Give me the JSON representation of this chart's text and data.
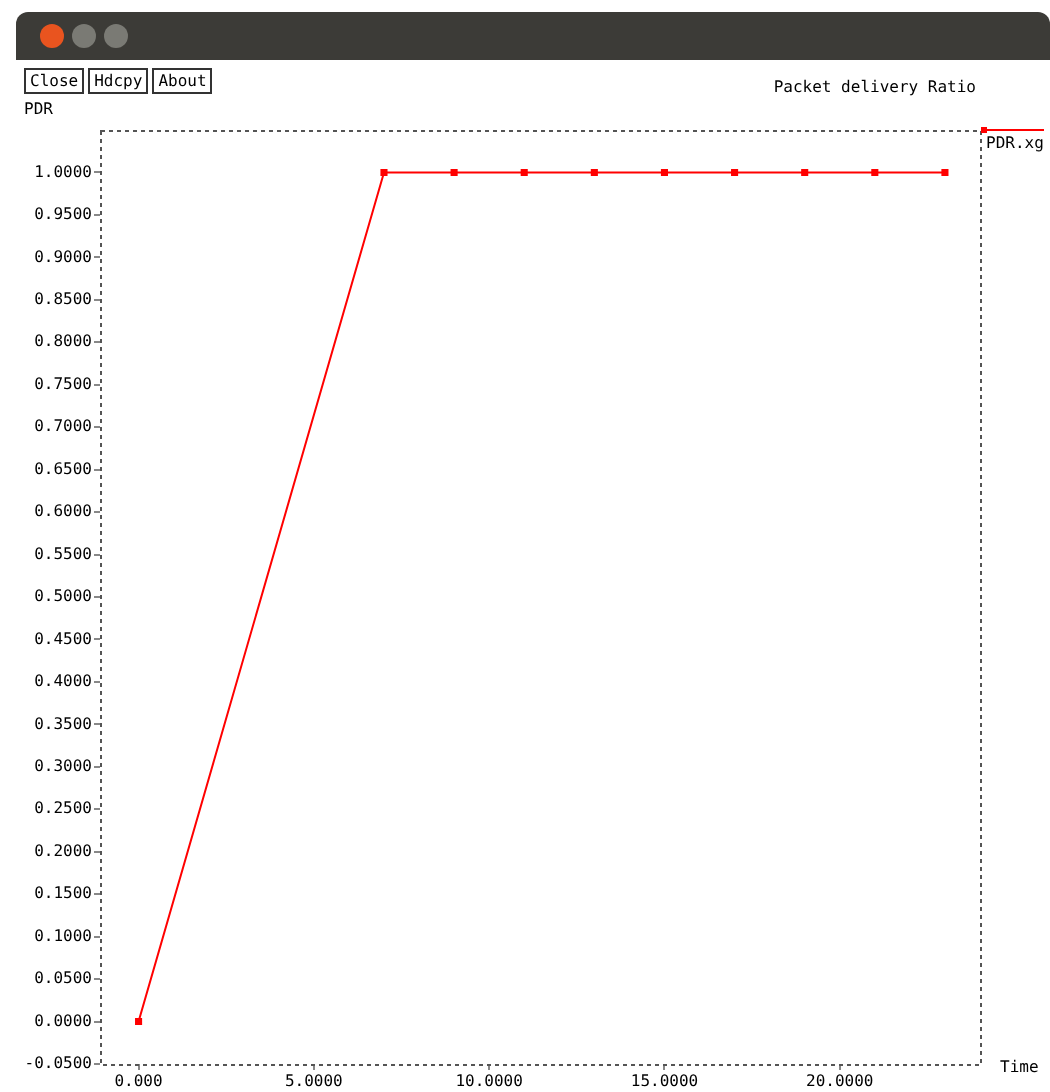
{
  "chart_data": {
    "type": "line",
    "title": "Packet delivery Ratio",
    "xlabel": "Time",
    "ylabel": "PDR",
    "annotations": [
      "Close",
      "Hdcpy",
      "About"
    ],
    "x": [
      0,
      7,
      9,
      11,
      13,
      15,
      17,
      19,
      21,
      23
    ],
    "series": [
      {
        "name": "PDR.xg",
        "color": "#ff0000",
        "values": [
          0,
          1,
          1,
          1,
          1,
          1,
          1,
          1,
          1,
          1
        ]
      }
    ],
    "xlim": [
      -1.1,
      24
    ],
    "xticks": [
      {
        "value": 0,
        "label": "0.000"
      },
      {
        "value": 5,
        "label": "5.0000"
      },
      {
        "value": 10,
        "label": "10.0000"
      },
      {
        "value": 15,
        "label": "15.0000"
      },
      {
        "value": 20,
        "label": "20.0000"
      }
    ],
    "ylim": [
      -0.05,
      1.05
    ],
    "yticks": [
      {
        "value": -0.05,
        "label": "-0.0500"
      },
      {
        "value": 0,
        "label": "0.0000"
      },
      {
        "value": 0.05,
        "label": "0.0500"
      },
      {
        "value": 0.1,
        "label": "0.1000"
      },
      {
        "value": 0.15,
        "label": "0.1500"
      },
      {
        "value": 0.2,
        "label": "0.2000"
      },
      {
        "value": 0.25,
        "label": "0.2500"
      },
      {
        "value": 0.3,
        "label": "0.3000"
      },
      {
        "value": 0.35,
        "label": "0.3500"
      },
      {
        "value": 0.4,
        "label": "0.4000"
      },
      {
        "value": 0.45,
        "label": "0.4500"
      },
      {
        "value": 0.5,
        "label": "0.5000"
      },
      {
        "value": 0.55,
        "label": "0.5500"
      },
      {
        "value": 0.6,
        "label": "0.6000"
      },
      {
        "value": 0.65,
        "label": "0.6500"
      },
      {
        "value": 0.7,
        "label": "0.7000"
      },
      {
        "value": 0.75,
        "label": "0.7500"
      },
      {
        "value": 0.8,
        "label": "0.8000"
      },
      {
        "value": 0.85,
        "label": "0.8500"
      },
      {
        "value": 0.9,
        "label": "0.9000"
      },
      {
        "value": 0.95,
        "label": "0.9500"
      },
      {
        "value": 1,
        "label": "1.0000"
      }
    ],
    "grid": false,
    "legend": "top right",
    "marker": "square",
    "line_style": "solid"
  }
}
